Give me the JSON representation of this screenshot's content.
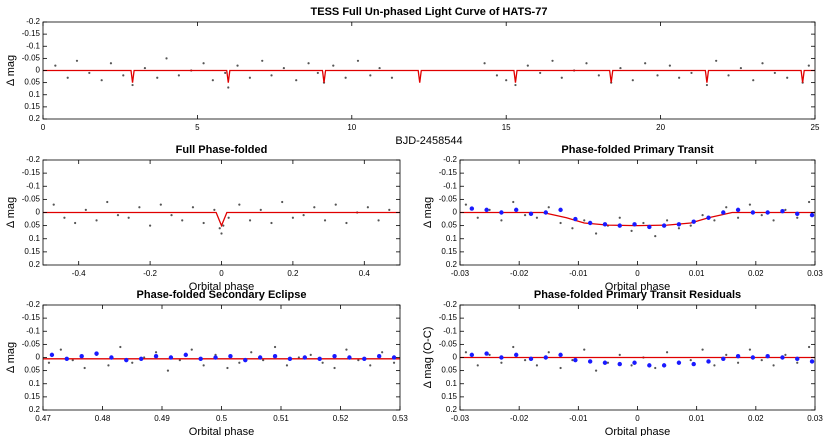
{
  "chart_data": [
    {
      "type": "scatter",
      "title": "TESS Full Un-phased Light Curve of HATS-77",
      "xlabel": "BJD-2458544",
      "ylabel": "Δ mag",
      "xlim": [
        0,
        25
      ],
      "xticks": [
        0,
        5,
        10,
        15,
        20,
        25
      ],
      "ylim": [
        -0.2,
        0.2
      ],
      "y_inverted": true,
      "yticks": [
        -0.2,
        -0.15,
        -0.1,
        -0.05,
        0,
        0.05,
        0.1,
        0.15,
        0.2
      ],
      "points": {
        "color": "#555555",
        "x": [
          0.4,
          0.8,
          1.1,
          1.5,
          1.9,
          2.2,
          2.6,
          2.9,
          3.3,
          3.7,
          4.0,
          4.4,
          4.8,
          5.2,
          5.5,
          5.9,
          6.0,
          6.3,
          6.7,
          7.1,
          7.4,
          7.8,
          8.2,
          8.6,
          8.9,
          9.1,
          9.4,
          9.8,
          10.2,
          10.6,
          10.9,
          11.3,
          14.3,
          14.7,
          15.0,
          15.3,
          15.7,
          16.1,
          16.5,
          16.8,
          17.2,
          17.6,
          18.0,
          18.4,
          18.7,
          19.1,
          19.5,
          19.9,
          20.3,
          20.6,
          21.0,
          21.5,
          21.8,
          22.2,
          22.6,
          23.0,
          23.3,
          23.7,
          24.1,
          24.6,
          24.8
        ],
        "y": [
          -0.02,
          0.03,
          -0.04,
          0.01,
          0.04,
          -0.03,
          0.02,
          0.06,
          -0.01,
          0.03,
          -0.05,
          0.02,
          0.0,
          -0.03,
          0.04,
          0.01,
          0.07,
          -0.02,
          0.03,
          -0.04,
          0.02,
          -0.01,
          0.04,
          -0.03,
          0.01,
          0.05,
          -0.02,
          0.03,
          -0.04,
          0.02,
          -0.01,
          0.03,
          -0.03,
          0.02,
          0.04,
          0.06,
          -0.02,
          0.01,
          -0.04,
          0.03,
          0.0,
          -0.03,
          0.02,
          0.05,
          -0.01,
          0.04,
          -0.03,
          0.02,
          -0.02,
          0.03,
          0.01,
          0.06,
          -0.04,
          0.02,
          -0.01,
          0.04,
          -0.03,
          0.01,
          0.03,
          0.05,
          -0.02
        ]
      },
      "model": {
        "color": "#e00000",
        "x": [
          0,
          2.85,
          2.9,
          2.95,
          5.95,
          6.0,
          6.05,
          9.05,
          9.1,
          9.15,
          12.15,
          12.2,
          12.25,
          15.25,
          15.3,
          15.35,
          18.35,
          18.4,
          18.45,
          21.45,
          21.5,
          21.55,
          24.55,
          24.6,
          24.65,
          25
        ],
        "y": [
          0,
          0,
          0.05,
          0,
          0,
          0.05,
          0,
          0,
          0.05,
          0,
          0,
          0.05,
          0,
          0,
          0.05,
          0,
          0,
          0.05,
          0,
          0,
          0.05,
          0,
          0,
          0.05,
          0,
          0
        ]
      }
    },
    {
      "type": "scatter",
      "title": "Full Phase-folded",
      "xlabel": "Orbital phase",
      "ylabel": "Δ mag",
      "xlim": [
        -0.5,
        0.5
      ],
      "xticks": [
        -0.4,
        -0.2,
        0,
        0.2,
        0.4
      ],
      "ylim": [
        -0.2,
        0.2
      ],
      "y_inverted": true,
      "yticks": [
        -0.2,
        -0.15,
        -0.1,
        -0.05,
        0,
        0.05,
        0.1,
        0.15,
        0.2
      ],
      "points": {
        "color": "#555555",
        "x": [
          -0.47,
          -0.44,
          -0.41,
          -0.38,
          -0.35,
          -0.32,
          -0.29,
          -0.26,
          -0.23,
          -0.2,
          -0.17,
          -0.14,
          -0.11,
          -0.08,
          -0.05,
          -0.02,
          -0.005,
          0,
          0.005,
          0.02,
          0.05,
          0.08,
          0.11,
          0.14,
          0.17,
          0.2,
          0.23,
          0.26,
          0.29,
          0.32,
          0.35,
          0.38,
          0.41,
          0.44,
          0.47
        ],
        "y": [
          -0.03,
          0.02,
          0.04,
          -0.01,
          0.03,
          -0.04,
          0.01,
          0.02,
          -0.02,
          0.05,
          -0.03,
          0.01,
          0.03,
          -0.02,
          0.04,
          -0.01,
          0.06,
          0.08,
          0.05,
          0.02,
          -0.03,
          0.03,
          -0.01,
          0.04,
          -0.04,
          0.02,
          0.01,
          -0.02,
          0.03,
          -0.03,
          0.04,
          0.0,
          -0.02,
          0.03,
          -0.01
        ]
      },
      "model": {
        "color": "#e00000",
        "x": [
          -0.5,
          -0.015,
          0,
          0.015,
          0.5
        ],
        "y": [
          0,
          0,
          0.05,
          0,
          0
        ]
      }
    },
    {
      "type": "scatter",
      "title": "Phase-folded Primary Transit",
      "xlabel": "Orbital phase",
      "ylabel": "Δ mag",
      "xlim": [
        -0.03,
        0.03
      ],
      "xticks": [
        -0.03,
        -0.02,
        -0.01,
        0,
        0.01,
        0.02,
        0.03
      ],
      "ylim": [
        -0.2,
        0.2
      ],
      "y_inverted": true,
      "yticks": [
        -0.2,
        -0.15,
        -0.1,
        -0.05,
        0,
        0.05,
        0.1,
        0.15,
        0.2
      ],
      "points": {
        "color": "#555555",
        "x": [
          -0.029,
          -0.027,
          -0.025,
          -0.023,
          -0.021,
          -0.019,
          -0.017,
          -0.015,
          -0.013,
          -0.011,
          -0.009,
          -0.007,
          -0.005,
          -0.003,
          -0.001,
          0.001,
          0.003,
          0.005,
          0.007,
          0.009,
          0.011,
          0.013,
          0.015,
          0.017,
          0.019,
          0.021,
          0.023,
          0.025,
          0.027,
          0.029
        ],
        "y": [
          -0.03,
          0.02,
          -0.01,
          0.03,
          -0.04,
          0.01,
          0.02,
          -0.02,
          0.04,
          0.06,
          0.03,
          0.08,
          0.05,
          0.02,
          0.07,
          0.04,
          0.09,
          0.03,
          0.06,
          0.05,
          0.01,
          0.03,
          -0.02,
          0.02,
          -0.03,
          0.01,
          0.03,
          -0.01,
          0.02,
          -0.04
        ]
      },
      "model": {
        "color": "#e00000",
        "x": [
          -0.03,
          -0.016,
          -0.012,
          -0.009,
          -0.005,
          0,
          0.005,
          0.009,
          0.012,
          0.016,
          0.03
        ],
        "y": [
          0,
          0,
          0.02,
          0.04,
          0.048,
          0.05,
          0.048,
          0.04,
          0.02,
          0,
          0
        ]
      },
      "binned": {
        "color": "#1a1aff",
        "x": [
          -0.028,
          -0.0255,
          -0.023,
          -0.0205,
          -0.018,
          -0.0155,
          -0.013,
          -0.0105,
          -0.008,
          -0.0055,
          -0.003,
          -0.0005,
          0.002,
          0.0045,
          0.007,
          0.0095,
          0.012,
          0.0145,
          0.017,
          0.0195,
          0.022,
          0.0245,
          0.027,
          0.0295
        ],
        "y": [
          -0.015,
          -0.01,
          0.0,
          -0.01,
          0.005,
          0.0,
          -0.01,
          0.025,
          0.04,
          0.045,
          0.05,
          0.045,
          0.055,
          0.05,
          0.045,
          0.035,
          0.02,
          0.0,
          -0.01,
          0.0,
          0.0,
          -0.005,
          0.005,
          0.01
        ]
      }
    },
    {
      "type": "scatter",
      "title": "Phase-folded Secondary Eclipse",
      "xlabel": "Orbital phase",
      "ylabel": "Δ mag",
      "xlim": [
        0.47,
        0.53
      ],
      "xticks": [
        0.47,
        0.48,
        0.49,
        0.5,
        0.51,
        0.52,
        0.53
      ],
      "ylim": [
        -0.2,
        0.2
      ],
      "y_inverted": true,
      "yticks": [
        -0.2,
        -0.15,
        -0.1,
        -0.05,
        0,
        0.05,
        0.1,
        0.15,
        0.2
      ],
      "points": {
        "color": "#555555",
        "x": [
          0.471,
          0.473,
          0.475,
          0.477,
          0.479,
          0.481,
          0.483,
          0.485,
          0.487,
          0.489,
          0.491,
          0.493,
          0.495,
          0.497,
          0.499,
          0.501,
          0.503,
          0.505,
          0.507,
          0.509,
          0.511,
          0.513,
          0.515,
          0.517,
          0.519,
          0.521,
          0.523,
          0.525,
          0.527,
          0.529
        ],
        "y": [
          0.02,
          -0.03,
          0.01,
          0.04,
          -0.01,
          0.03,
          -0.04,
          0.02,
          0.0,
          -0.02,
          0.05,
          0.01,
          -0.03,
          0.03,
          -0.01,
          0.04,
          0.02,
          -0.02,
          0.01,
          -0.04,
          0.03,
          0.0,
          -0.01,
          0.02,
          0.04,
          -0.03,
          0.01,
          0.03,
          -0.02,
          0.02
        ]
      },
      "model": {
        "color": "#e00000",
        "x": [
          0.47,
          0.53
        ],
        "y": [
          0.005,
          0.005
        ]
      },
      "binned": {
        "color": "#1a1aff",
        "x": [
          0.4715,
          0.474,
          0.4765,
          0.479,
          0.4815,
          0.484,
          0.4865,
          0.489,
          0.4915,
          0.494,
          0.4965,
          0.499,
          0.5015,
          0.504,
          0.5065,
          0.509,
          0.5115,
          0.514,
          0.5165,
          0.519,
          0.5215,
          0.524,
          0.5265,
          0.529
        ],
        "y": [
          -0.01,
          0.005,
          -0.005,
          -0.015,
          0.0,
          0.01,
          0.005,
          -0.005,
          0.0,
          -0.01,
          0.005,
          0.0,
          -0.005,
          0.01,
          0.0,
          -0.005,
          0.005,
          0.0,
          0.005,
          -0.005,
          0.0,
          0.005,
          -0.005,
          0.0
        ]
      }
    },
    {
      "type": "scatter",
      "title": "Phase-folded Primary Transit Residuals",
      "xlabel": "Orbital phase",
      "ylabel": "Δ mag (O-C)",
      "xlim": [
        -0.03,
        0.03
      ],
      "xticks": [
        -0.03,
        -0.02,
        -0.01,
        0,
        0.01,
        0.02,
        0.03
      ],
      "ylim": [
        -0.2,
        0.2
      ],
      "y_inverted": true,
      "yticks": [
        -0.2,
        -0.15,
        -0.1,
        -0.05,
        0,
        0.05,
        0.1,
        0.15,
        0.2
      ],
      "points": {
        "color": "#555555",
        "x": [
          -0.029,
          -0.027,
          -0.025,
          -0.023,
          -0.021,
          -0.019,
          -0.017,
          -0.015,
          -0.013,
          -0.011,
          -0.009,
          -0.007,
          -0.005,
          -0.003,
          -0.001,
          0.001,
          0.003,
          0.005,
          0.007,
          0.009,
          0.011,
          0.013,
          0.015,
          0.017,
          0.019,
          0.021,
          0.023,
          0.025,
          0.027,
          0.029
        ],
        "y": [
          -0.02,
          0.03,
          -0.01,
          0.02,
          -0.04,
          0.01,
          0.03,
          -0.02,
          0.04,
          0.01,
          -0.03,
          0.05,
          0.02,
          -0.01,
          0.03,
          0.0,
          0.04,
          -0.02,
          0.02,
          0.01,
          -0.03,
          0.03,
          -0.01,
          0.02,
          -0.03,
          0.01,
          0.03,
          -0.01,
          0.02,
          -0.04
        ]
      },
      "model": {
        "color": "#e00000",
        "x": [
          -0.03,
          0.03
        ],
        "y": [
          0,
          0
        ]
      },
      "binned": {
        "color": "#1a1aff",
        "x": [
          -0.028,
          -0.0255,
          -0.023,
          -0.0205,
          -0.018,
          -0.0155,
          -0.013,
          -0.0105,
          -0.008,
          -0.0055,
          -0.003,
          -0.0005,
          0.002,
          0.0045,
          0.007,
          0.0095,
          0.012,
          0.0145,
          0.017,
          0.0195,
          0.022,
          0.0245,
          0.027,
          0.0295
        ],
        "y": [
          -0.01,
          -0.015,
          0.0,
          -0.01,
          0.005,
          0.0,
          -0.01,
          0.01,
          0.015,
          0.02,
          0.025,
          0.02,
          0.03,
          0.03,
          0.02,
          0.025,
          0.015,
          0.005,
          -0.005,
          0.0,
          -0.005,
          0.0,
          0.005,
          0.015
        ]
      }
    }
  ]
}
